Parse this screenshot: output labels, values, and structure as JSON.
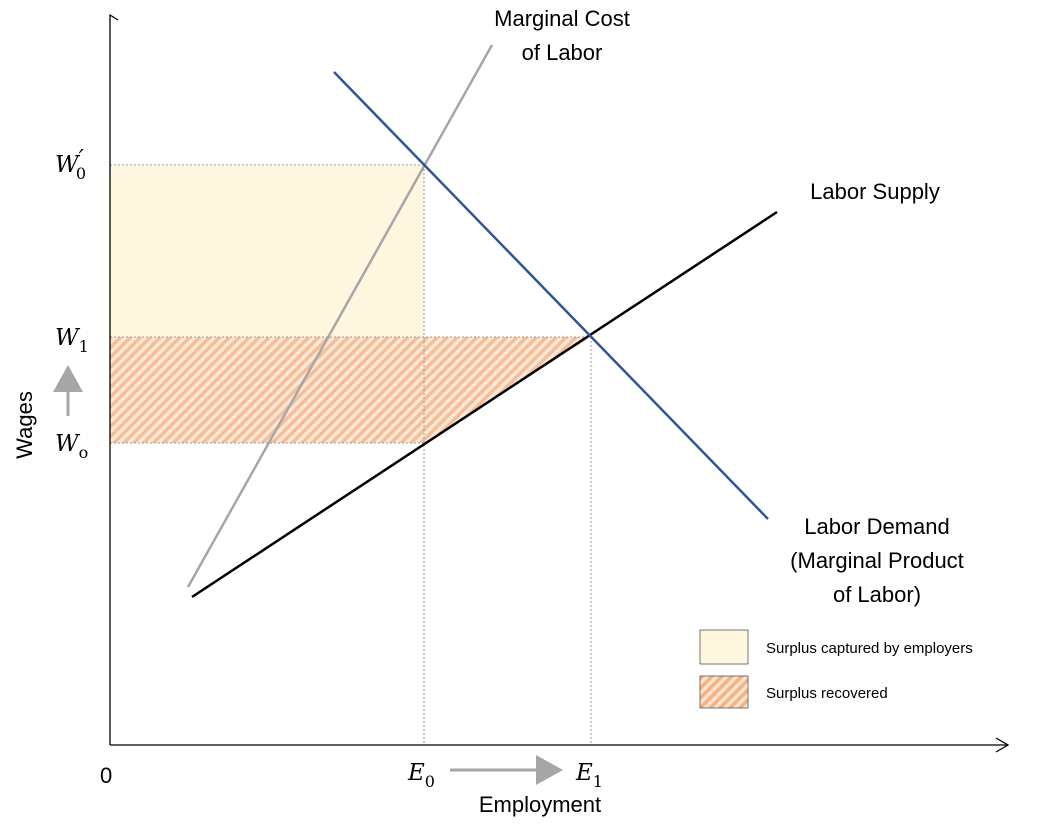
{
  "diagram": {
    "curves": {
      "marginal_cost": {
        "label": [
          "Marginal Cost",
          "of Labor"
        ]
      },
      "supply": {
        "label": [
          "Labor Supply"
        ]
      },
      "demand": {
        "label": [
          "Labor Demand",
          "(Marginal Product",
          "of Labor)"
        ]
      }
    },
    "axes": {
      "y_label": "Wages",
      "x_label": "Employment",
      "origin": "0"
    },
    "wage_labels": [
      {
        "main": "W",
        "sub": "0",
        "sup": "′"
      },
      {
        "main": "W",
        "sub": "1"
      },
      {
        "main": "W",
        "sub": "o"
      }
    ],
    "employment_labels": [
      {
        "main": "E",
        "sub": "0"
      },
      {
        "main": "E",
        "sub": "1"
      }
    ],
    "legend": [
      "Surplus captured by employers",
      "Surplus recovered"
    ]
  }
}
